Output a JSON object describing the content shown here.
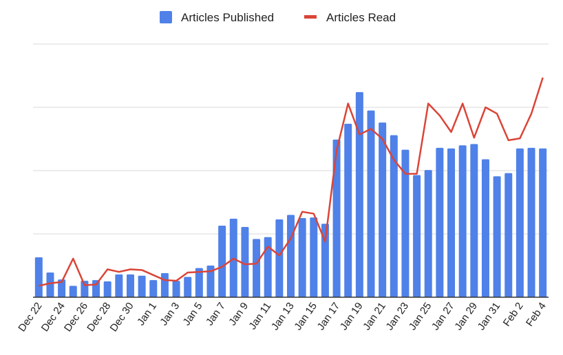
{
  "chart_data": {
    "type": "bar",
    "title": "",
    "xlabel": "",
    "ylabel": "",
    "ylim": [
      0,
      400
    ],
    "grid": true,
    "legend_position": "top-center",
    "x": [
      "Dec 22",
      "Dec 23",
      "Dec 24",
      "Dec 25",
      "Dec 26",
      "Dec 27",
      "Dec 28",
      "Dec 29",
      "Dec 30",
      "Dec 31",
      "Jan 1",
      "Jan 2",
      "Jan 3",
      "Jan 4",
      "Jan 5",
      "Jan 6",
      "Jan 7",
      "Jan 8",
      "Jan 9",
      "Jan 10",
      "Jan 11",
      "Jan 12",
      "Jan 13",
      "Jan 14",
      "Jan 15",
      "Jan 16",
      "Jan 17",
      "Jan 18",
      "Jan 19",
      "Jan 20",
      "Jan 21",
      "Jan 22",
      "Jan 23",
      "Jan 24",
      "Jan 25",
      "Jan 26",
      "Jan 27",
      "Jan 28",
      "Jan 29",
      "Jan 30",
      "Jan 31",
      "Feb 1",
      "Feb 2",
      "Feb 3",
      "Feb 4"
    ],
    "tick_labels": [
      "Dec 22",
      "Dec 24",
      "Dec 26",
      "Dec 28",
      "Dec 30",
      "Jan 1",
      "Jan 3",
      "Jan 5",
      "Jan 7",
      "Jan 9",
      "Jan 11",
      "Jan 13",
      "Jan 15",
      "Jan 17",
      "Jan 19",
      "Jan 21",
      "Jan 23",
      "Jan 25",
      "Jan 27",
      "Jan 29",
      "Jan 31",
      "Feb 2",
      "Feb 4"
    ],
    "series": [
      {
        "name": "Articles Published",
        "kind": "bar",
        "color": "#4f81e8",
        "values": [
          63,
          39,
          28,
          18,
          26,
          27,
          25,
          36,
          36,
          34,
          27,
          38,
          26,
          32,
          46,
          50,
          113,
          124,
          111,
          92,
          95,
          123,
          130,
          125,
          126,
          116,
          249,
          274,
          324,
          295,
          276,
          256,
          233,
          193,
          201,
          236,
          235,
          240,
          242,
          218,
          191,
          196,
          235,
          236,
          235
        ]
      },
      {
        "name": "Articles Read",
        "kind": "line",
        "color": "#db4437",
        "values": [
          18,
          22,
          24,
          61,
          19,
          20,
          44,
          40,
          44,
          43,
          35,
          27,
          26,
          39,
          40,
          41,
          48,
          61,
          52,
          53,
          80,
          66,
          93,
          135,
          132,
          88,
          232,
          306,
          257,
          266,
          250,
          217,
          195,
          195,
          306,
          287,
          261,
          306,
          252,
          300,
          290,
          248,
          251,
          290,
          347
        ]
      }
    ]
  }
}
